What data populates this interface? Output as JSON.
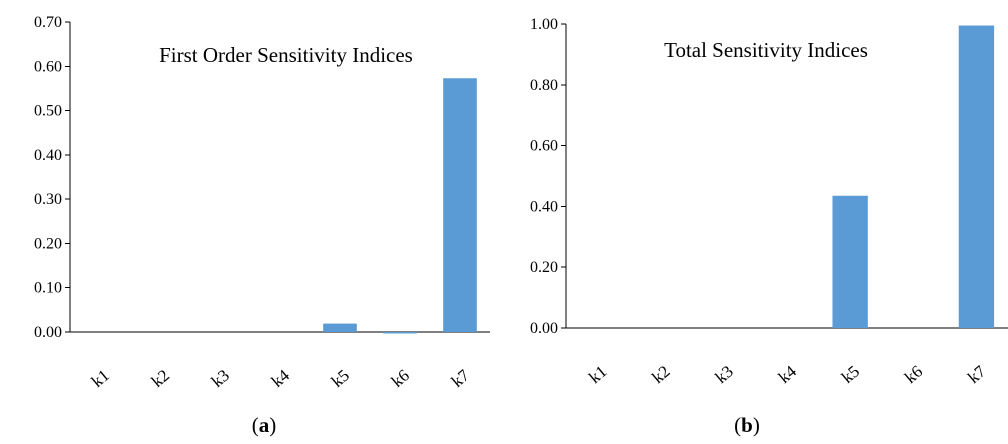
{
  "colors": {
    "bar": "#5b9bd5",
    "axis": "#000000",
    "background": "#ffffff"
  },
  "chart_data": [
    {
      "type": "bar",
      "title": "First Order Sensitivity Indices",
      "caption_letter": "a",
      "categories": [
        "k1",
        "k2",
        "k3",
        "k4",
        "k5",
        "k6",
        "k7"
      ],
      "values": [
        0.0,
        0.0,
        0.0,
        0.0,
        0.019,
        -0.002,
        0.573
      ],
      "ylim": [
        0,
        0.7
      ],
      "yticks": [
        "0.00",
        "0.10",
        "0.20",
        "0.30",
        "0.40",
        "0.50",
        "0.60",
        "0.70"
      ],
      "xlabel": "",
      "ylabel": "",
      "grid": false,
      "legend": "none"
    },
    {
      "type": "bar",
      "title": "Total Sensitivity Indices",
      "caption_letter": "b",
      "categories": [
        "k1",
        "k2",
        "k3",
        "k4",
        "k5",
        "k6",
        "k7"
      ],
      "values": [
        0.0,
        0.0,
        0.0,
        0.0,
        0.435,
        0.0,
        0.995
      ],
      "ylim": [
        0,
        1.0
      ],
      "yticks": [
        "0.00",
        "0.20",
        "0.40",
        "0.60",
        "0.80",
        "1.00"
      ],
      "xlabel": "",
      "ylabel": "",
      "grid": false,
      "legend": "none"
    }
  ]
}
